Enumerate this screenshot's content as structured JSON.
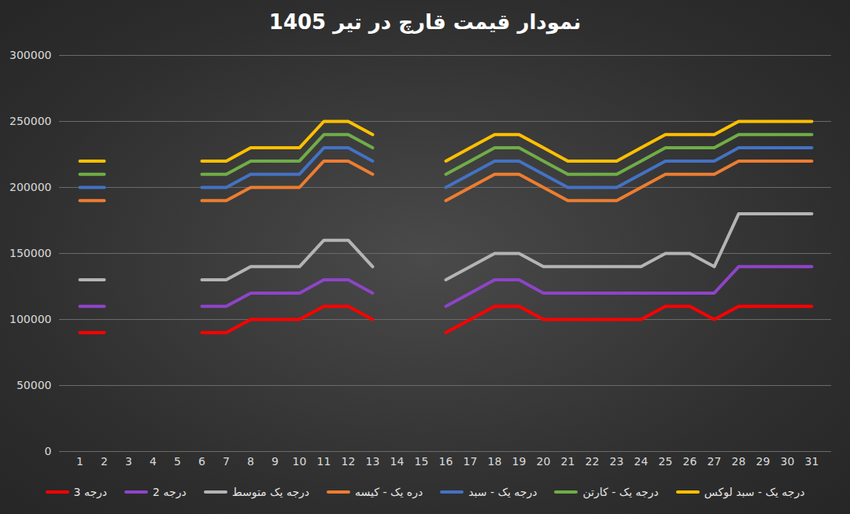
{
  "chart_data": {
    "type": "line",
    "title": "نمودار قیمت قارچ در تیر 1405",
    "categories": [
      "1",
      "2",
      "3",
      "4",
      "5",
      "6",
      "7",
      "8",
      "9",
      "10",
      "11",
      "12",
      "13",
      "14",
      "15",
      "16",
      "17",
      "18",
      "19",
      "20",
      "21",
      "22",
      "23",
      "24",
      "25",
      "26",
      "27",
      "28",
      "29",
      "30",
      "31"
    ],
    "series": [
      {
        "name": "درجه 3",
        "color": "#ff0000",
        "values": [
          90000,
          90000,
          null,
          null,
          null,
          90000,
          90000,
          100000,
          100000,
          100000,
          110000,
          110000,
          100000,
          null,
          null,
          90000,
          100000,
          110000,
          110000,
          100000,
          100000,
          100000,
          100000,
          100000,
          110000,
          110000,
          100000,
          110000,
          110000,
          110000,
          110000
        ]
      },
      {
        "name": "درجه 2",
        "color": "#8e44c9",
        "values": [
          110000,
          110000,
          null,
          null,
          null,
          110000,
          110000,
          120000,
          120000,
          120000,
          130000,
          130000,
          120000,
          null,
          null,
          110000,
          120000,
          130000,
          130000,
          120000,
          120000,
          120000,
          120000,
          120000,
          120000,
          120000,
          120000,
          140000,
          140000,
          140000,
          140000
        ]
      },
      {
        "name": "درجه یک متوسط",
        "color": "#b4b4b4",
        "values": [
          130000,
          130000,
          null,
          null,
          null,
          130000,
          130000,
          140000,
          140000,
          140000,
          160000,
          160000,
          140000,
          null,
          null,
          130000,
          140000,
          150000,
          150000,
          140000,
          140000,
          140000,
          140000,
          140000,
          150000,
          150000,
          140000,
          180000,
          180000,
          180000,
          180000
        ]
      },
      {
        "name": "دره یک - کیسه",
        "color": "#ed7d31",
        "values": [
          190000,
          190000,
          null,
          null,
          null,
          190000,
          190000,
          200000,
          200000,
          200000,
          220000,
          220000,
          210000,
          null,
          null,
          190000,
          200000,
          210000,
          210000,
          200000,
          190000,
          190000,
          190000,
          200000,
          210000,
          210000,
          210000,
          220000,
          220000,
          220000,
          220000
        ]
      },
      {
        "name": "درجه یک - سبد",
        "color": "#4472c4",
        "values": [
          200000,
          200000,
          null,
          null,
          null,
          200000,
          200000,
          210000,
          210000,
          210000,
          230000,
          230000,
          220000,
          null,
          null,
          200000,
          210000,
          220000,
          220000,
          210000,
          200000,
          200000,
          200000,
          210000,
          220000,
          220000,
          220000,
          230000,
          230000,
          230000,
          230000
        ]
      },
      {
        "name": "درجه یک - کارتن",
        "color": "#70ad47",
        "values": [
          210000,
          210000,
          null,
          null,
          null,
          210000,
          210000,
          220000,
          220000,
          220000,
          240000,
          240000,
          230000,
          null,
          null,
          210000,
          220000,
          230000,
          230000,
          220000,
          210000,
          210000,
          210000,
          220000,
          230000,
          230000,
          230000,
          240000,
          240000,
          240000,
          240000
        ]
      },
      {
        "name": "درجه یک - سبد لوکس",
        "color": "#ffc000",
        "values": [
          220000,
          220000,
          null,
          null,
          null,
          220000,
          220000,
          230000,
          230000,
          230000,
          250000,
          250000,
          240000,
          null,
          null,
          220000,
          230000,
          240000,
          240000,
          230000,
          220000,
          220000,
          220000,
          230000,
          240000,
          240000,
          240000,
          250000,
          250000,
          250000,
          250000
        ]
      }
    ],
    "ylim": [
      0,
      300000
    ],
    "yticks": [
      0,
      50000,
      100000,
      150000,
      200000,
      250000,
      300000
    ],
    "grid": true,
    "legend": "bottom"
  }
}
